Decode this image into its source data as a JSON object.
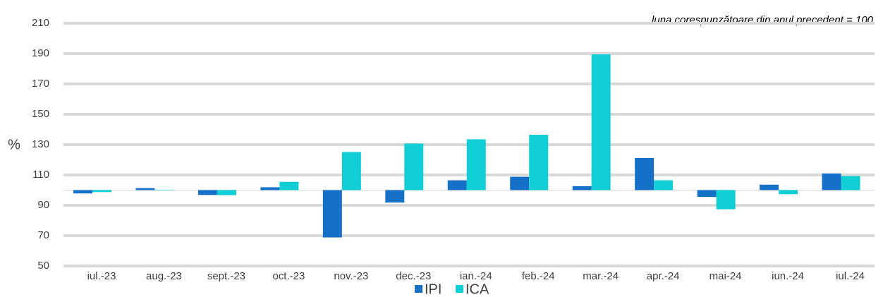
{
  "chart_data": {
    "type": "bar",
    "annotation": "luna corespunzătoare din anul precedent = 100",
    "y_label": "%",
    "baseline": 100,
    "categories": [
      "iul.-23",
      "aug.-23",
      "sept.-23",
      "oct.-23",
      "nov.-23",
      "dec.-23",
      "ian.-24",
      "feb.-24",
      "mar.-24",
      "apr.-24",
      "mai-24",
      "iun.-24",
      "iul.-24"
    ],
    "series": [
      {
        "name": "IPI",
        "color": "#1570c8",
        "values": [
          97.8,
          101.3,
          96.8,
          101.9,
          68.8,
          91.8,
          106.5,
          108.8,
          102.6,
          121.2,
          95.5,
          103.6,
          111.0
        ]
      },
      {
        "name": "ICA",
        "color": "#10cdd6",
        "values": [
          98.7,
          100.3,
          96.7,
          105.5,
          125.1,
          130.7,
          133.5,
          136.5,
          189.5,
          106.5,
          87.4,
          97.3,
          109.3
        ]
      }
    ],
    "ylim": [
      50,
      210
    ],
    "yticks": [
      50,
      70,
      90,
      110,
      130,
      150,
      170,
      190,
      210
    ],
    "grid": true,
    "legend": "bottom"
  }
}
